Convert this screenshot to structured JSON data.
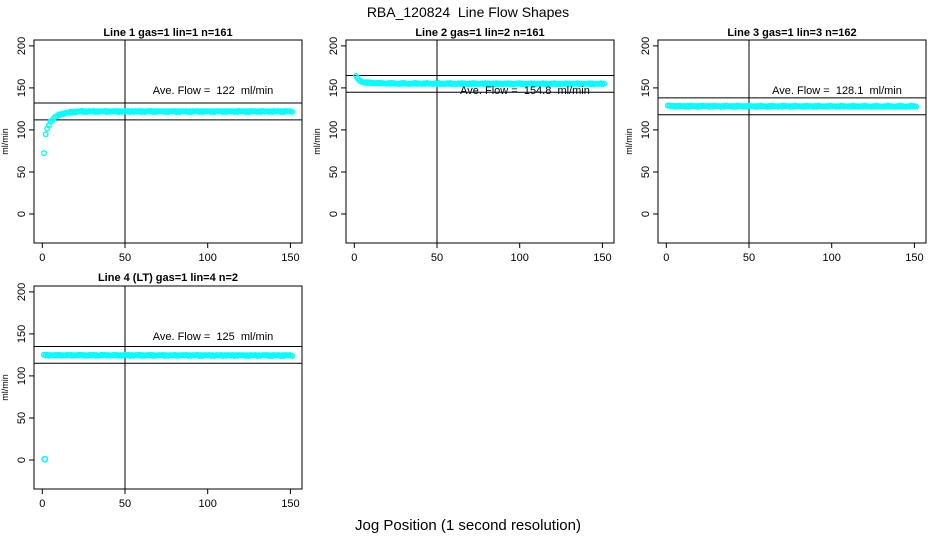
{
  "page": {
    "background": "#FFFFFF"
  },
  "chart_data": {
    "type": "scatter",
    "title": "RBA_120824  Line Flow Shapes",
    "xlabel": "Jog Position (1 second resolution)",
    "ylabel": "ml/min",
    "marker": "open-circle",
    "point_color": "#00FFFF",
    "axis_color": "#000000",
    "x_ticks": [
      0,
      50,
      100,
      150
    ],
    "y_ticks": [
      0,
      50,
      100,
      150,
      200
    ],
    "xlim": [
      -5,
      157
    ],
    "ylim": [
      -34.5,
      207
    ],
    "vline_x": 50,
    "grid": false,
    "panels": [
      {
        "title": "Line 1 gas=1 lin=1 n=161",
        "annotation": "Ave. Flow =  122  ml/min",
        "ave_flow": 122,
        "hlines": [
          132,
          112
        ],
        "n": 161,
        "x_start": 1,
        "x_end": 151,
        "anchors": [
          [
            1,
            72
          ],
          [
            2,
            95
          ],
          [
            3,
            101
          ],
          [
            4,
            106
          ],
          [
            5,
            109.5
          ],
          [
            6,
            112
          ],
          [
            7,
            114
          ],
          [
            8,
            115.5
          ],
          [
            9,
            116.8
          ],
          [
            10,
            117.8
          ],
          [
            11,
            118.5
          ],
          [
            12,
            119
          ],
          [
            14,
            120
          ],
          [
            16,
            120.7
          ],
          [
            18,
            121.2
          ],
          [
            20,
            121.6
          ],
          [
            24,
            122
          ],
          [
            151,
            122
          ]
        ],
        "outliers": []
      },
      {
        "title": "Line 2 gas=1 lin=2 n=161",
        "annotation": "Ave. Flow =  154.8  ml/min",
        "ave_flow": 154.8,
        "hlines": [
          164.8,
          144.8
        ],
        "n": 161,
        "x_start": 1,
        "x_end": 151,
        "anchors": [
          [
            1,
            164.5
          ],
          [
            2,
            161
          ],
          [
            3,
            159
          ],
          [
            4,
            157.8
          ],
          [
            5,
            157
          ],
          [
            6,
            156.6
          ],
          [
            8,
            156.2
          ],
          [
            10,
            156
          ],
          [
            14,
            155.7
          ],
          [
            20,
            155.4
          ],
          [
            30,
            155.2
          ],
          [
            60,
            155
          ],
          [
            151,
            154.8
          ]
        ],
        "outliers": []
      },
      {
        "title": "Line 3 gas=1 lin=3 n=162",
        "annotation": "Ave. Flow =  128.1  ml/min",
        "ave_flow": 128.1,
        "hlines": [
          138.1,
          118.1
        ],
        "n": 162,
        "x_start": 1,
        "x_end": 151,
        "anchors": [
          [
            1,
            128.6
          ],
          [
            4,
            128.3
          ],
          [
            10,
            128.2
          ],
          [
            151,
            128
          ]
        ],
        "outliers": []
      },
      {
        "title": "Line 4 (LT) gas=1 lin=4 n=2",
        "annotation": "Ave. Flow =  125  ml/min",
        "ave_flow": 125,
        "hlines": [
          135,
          115
        ],
        "n": 2,
        "x_start": 1,
        "x_end": 151,
        "anchors": [
          [
            1,
            124.7
          ],
          [
            75,
            124.5
          ],
          [
            151,
            124.4
          ]
        ],
        "outliers": [
          [
            1.5,
            1
          ]
        ]
      }
    ]
  }
}
